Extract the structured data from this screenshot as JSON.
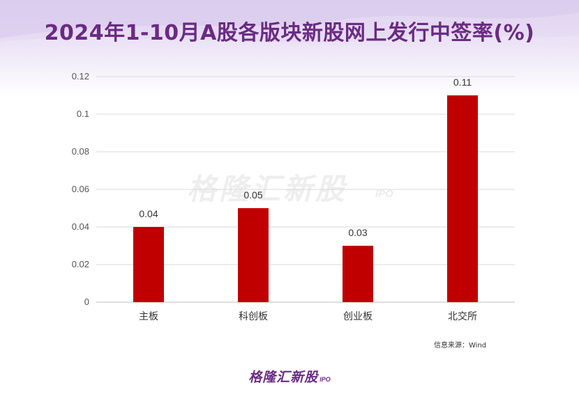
{
  "title": "2024年1-10月A股各版块新股网上发行中签率(%)",
  "watermark": {
    "brand": "格隆汇新股",
    "suffix": "IPO"
  },
  "source": "信息来源：Wind",
  "footer": {
    "brand": "格隆汇新股",
    "suffix": "IPO"
  },
  "colors": {
    "bar": "#c00000",
    "title": "#6a2b82",
    "grid": "#d9d9d9"
  },
  "chart_data": {
    "type": "bar",
    "title": "2024年1-10月A股各版块新股网上发行中签率(%)",
    "categories": [
      "主板",
      "科创板",
      "创业板",
      "北交所"
    ],
    "values": [
      0.04,
      0.05,
      0.03,
      0.11
    ],
    "data_labels": [
      "0.04",
      "0.05",
      "0.03",
      "0.11"
    ],
    "yticks": [
      "0",
      "0.02",
      "0.04",
      "0.06",
      "0.08",
      "0.1",
      "0.12"
    ],
    "ylim": [
      0,
      0.12
    ],
    "xlabel": "",
    "ylabel": "",
    "grid": true,
    "legend": "none"
  }
}
